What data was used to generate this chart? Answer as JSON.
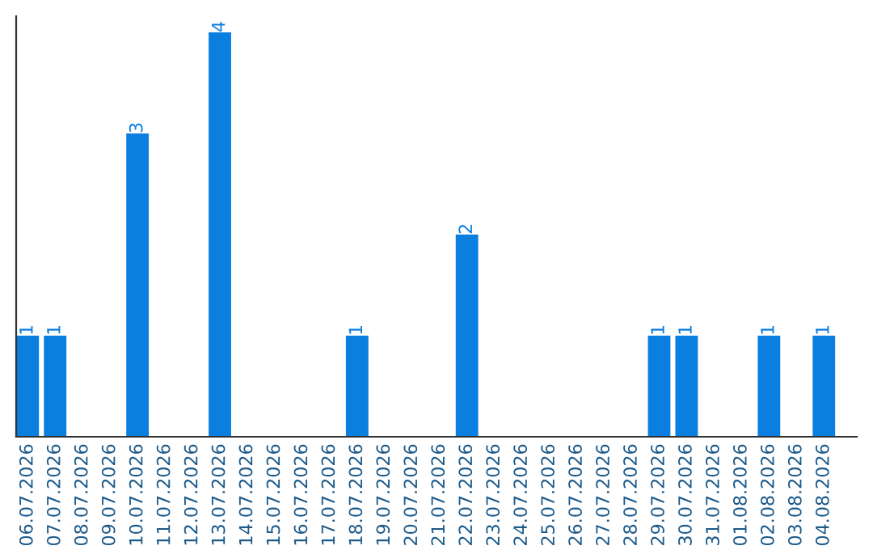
{
  "chart_data": {
    "type": "bar",
    "categories": [
      "06.07.2026",
      "07.07.2026",
      "08.07.2026",
      "09.07.2026",
      "10.07.2026",
      "11.07.2026",
      "12.07.2026",
      "13.07.2026",
      "14.07.2026",
      "15.07.2026",
      "16.07.2026",
      "17.07.2026",
      "18.07.2026",
      "19.07.2026",
      "20.07.2026",
      "21.07.2026",
      "22.07.2026",
      "23.07.2026",
      "24.07.2026",
      "25.07.2026",
      "26.07.2026",
      "27.07.2026",
      "28.07.2026",
      "29.07.2026",
      "30.07.2026",
      "31.07.2026",
      "01.08.2026",
      "02.08.2026",
      "03.08.2026",
      "04.08.2026"
    ],
    "values": [
      1,
      1,
      0,
      0,
      3,
      0,
      0,
      4,
      0,
      0,
      0,
      0,
      1,
      0,
      0,
      0,
      2,
      0,
      0,
      0,
      0,
      0,
      0,
      1,
      1,
      0,
      0,
      1,
      0,
      1
    ],
    "value_labels": [
      "1",
      "1",
      null,
      null,
      "3",
      null,
      null,
      "4",
      null,
      null,
      null,
      null,
      "1",
      null,
      null,
      null,
      "2",
      null,
      null,
      null,
      null,
      null,
      null,
      "1",
      "1",
      null,
      null,
      "1",
      null,
      "1"
    ],
    "color": "#0a7fe0",
    "grid": false,
    "legend": false,
    "tick_labels": "x"
  }
}
